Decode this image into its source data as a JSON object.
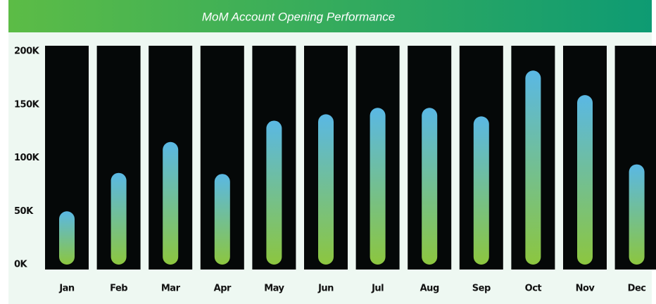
{
  "chart_data": {
    "type": "bar",
    "title": "MoM Account Opening Performance",
    "categories": [
      "Jan",
      "Feb",
      "Mar",
      "Apr",
      "May",
      "Jun",
      "Jul",
      "Aug",
      "Sep",
      "Oct",
      "Nov",
      "Dec"
    ],
    "values": [
      50000,
      86000,
      115000,
      85000,
      135000,
      141000,
      147000,
      147000,
      139000,
      182000,
      159000,
      94000
    ],
    "ylim": [
      0,
      200000
    ],
    "yticks": [
      {
        "value": 0,
        "label": "0K"
      },
      {
        "value": 50000,
        "label": "50K"
      },
      {
        "value": 100000,
        "label": "100K"
      },
      {
        "value": 150000,
        "label": "150K"
      },
      {
        "value": 200000,
        "label": "200K"
      }
    ],
    "color": "#5ab8e4",
    "color_bottom": "#8cc63f"
  }
}
